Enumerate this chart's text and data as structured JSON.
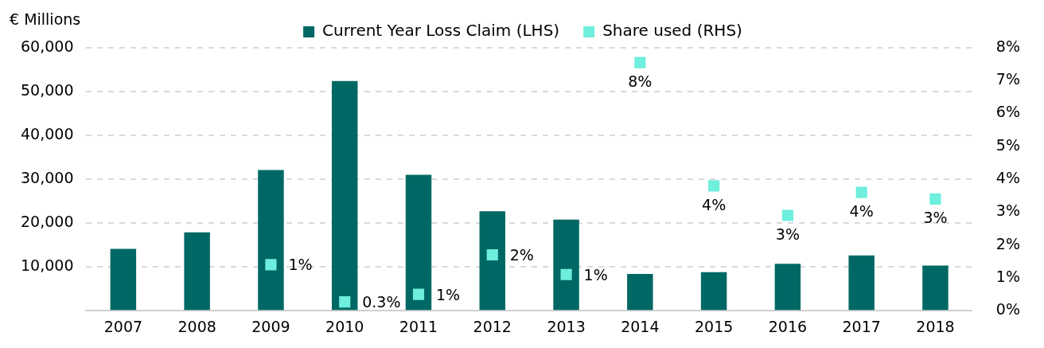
{
  "chart_data": {
    "type": "bar",
    "ylabel": "€ Millions",
    "categories": [
      "2007",
      "2008",
      "2009",
      "2010",
      "2011",
      "2012",
      "2013",
      "2014",
      "2015",
      "2016",
      "2017",
      "2018"
    ],
    "series": [
      {
        "name": "Current Year Loss Claim (LHS)",
        "color": "#006864",
        "values": [
          14100,
          17900,
          32100,
          52400,
          31000,
          22700,
          20800,
          8400,
          8800,
          10700,
          12600,
          10300
        ]
      },
      {
        "name": "Share used (RHS)",
        "type": "scatter",
        "axis": "y2",
        "color": "#6eeedc",
        "values": [
          null,
          null,
          1.4,
          0.27,
          0.5,
          1.7,
          1.1,
          7.55,
          3.8,
          2.9,
          3.6,
          3.4
        ],
        "value_labels": [
          null,
          null,
          "1%",
          "0.3%",
          "1%",
          "2%",
          "1%",
          "8%",
          "4%",
          "3%",
          "4%",
          "3%"
        ]
      }
    ],
    "ylim": [
      0,
      60000
    ],
    "yticks": [
      {
        "value": 0,
        "label": null
      },
      {
        "value": 10000,
        "label": "10,000"
      },
      {
        "value": 20000,
        "label": "20,000"
      },
      {
        "value": 30000,
        "label": "30,000"
      },
      {
        "value": 40000,
        "label": "40,000"
      },
      {
        "value": 50000,
        "label": "50,000"
      },
      {
        "value": 60000,
        "label": "60,000"
      }
    ],
    "y2lim": [
      0,
      8
    ],
    "y2ticks": [
      {
        "value": 0,
        "label": "0%"
      },
      {
        "value": 1,
        "label": "1%"
      },
      {
        "value": 2,
        "label": "2%"
      },
      {
        "value": 3,
        "label": "3%"
      },
      {
        "value": 4,
        "label": "4%"
      },
      {
        "value": 5,
        "label": "5%"
      },
      {
        "value": 6,
        "label": "6%"
      },
      {
        "value": 7,
        "label": "7%"
      },
      {
        "value": 8,
        "label": "8%"
      }
    ],
    "grid": "y",
    "legend": "top",
    "marker": "square"
  }
}
